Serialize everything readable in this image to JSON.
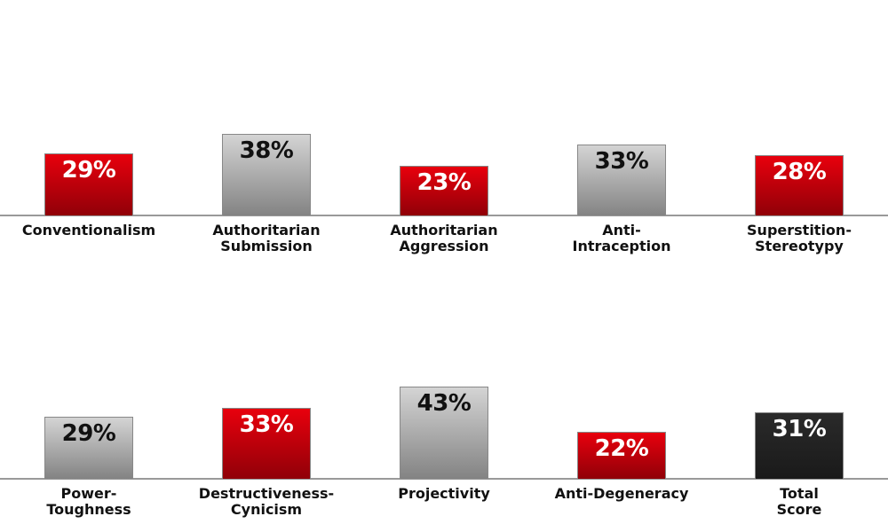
{
  "chart_data": [
    {
      "type": "bar",
      "categories": [
        "Conventionalism",
        "Authoritarian\nSubmission",
        "Authoritarian\nAggression",
        "Anti-\nIntraception",
        "Superstition-\nStereotypy"
      ],
      "values": [
        29,
        38,
        23,
        33,
        28
      ],
      "value_labels": [
        "29%",
        "38%",
        "23%",
        "33%",
        "28%"
      ],
      "colors": [
        "#e8000d",
        "#d4d4d4",
        "#e8000d",
        "#d4d4d4",
        "#e8000d"
      ]
    },
    {
      "type": "bar",
      "categories": [
        "Power-\nToughness",
        "Destructiveness-\nCynicism",
        "Projectivity",
        "Anti-Degeneracy",
        "Total\nScore"
      ],
      "values": [
        29,
        33,
        43,
        22,
        31
      ],
      "value_labels": [
        "29%",
        "33%",
        "43%",
        "22%",
        "31%"
      ],
      "colors": [
        "#d4d4d4",
        "#e8000d",
        "#d4d4d4",
        "#e8000d",
        "#2a2a2a"
      ]
    }
  ]
}
